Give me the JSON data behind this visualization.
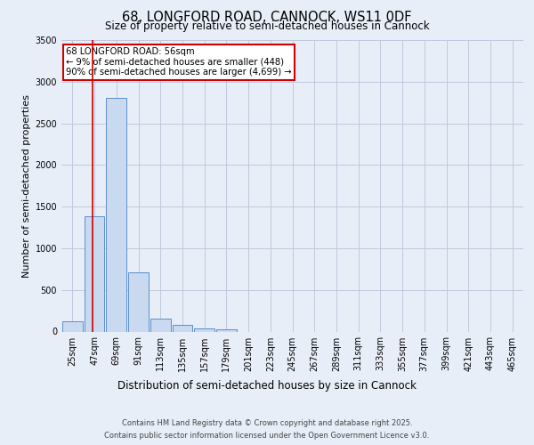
{
  "title1": "68, LONGFORD ROAD, CANNOCK, WS11 0DF",
  "title2": "Size of property relative to semi-detached houses in Cannock",
  "xlabel": "Distribution of semi-detached houses by size in Cannock",
  "ylabel": "Number of semi-detached properties",
  "annotation_title": "68 LONGFORD ROAD: 56sqm",
  "annotation_line1": "← 9% of semi-detached houses are smaller (448)",
  "annotation_line2": "90% of semi-detached houses are larger (4,699) →",
  "footer1": "Contains HM Land Registry data © Crown copyright and database right 2025.",
  "footer2": "Contains public sector information licensed under the Open Government Licence v3.0.",
  "bar_color": "#c8d9f0",
  "bar_edge_color": "#5b8fc9",
  "vline_x": 56,
  "vline_color": "#cc0000",
  "background_color": "#e8eef8",
  "categories": [
    "25sqm",
    "47sqm",
    "69sqm",
    "91sqm",
    "113sqm",
    "135sqm",
    "157sqm",
    "179sqm",
    "201sqm",
    "223sqm",
    "245sqm",
    "267sqm",
    "289sqm",
    "311sqm",
    "333sqm",
    "355sqm",
    "377sqm",
    "399sqm",
    "421sqm",
    "443sqm",
    "465sqm"
  ],
  "bin_edges": [
    25,
    47,
    69,
    91,
    113,
    135,
    157,
    179,
    201,
    223,
    245,
    267,
    289,
    311,
    333,
    355,
    377,
    399,
    421,
    443,
    465
  ],
  "values": [
    125,
    1380,
    2800,
    710,
    155,
    80,
    40,
    25,
    0,
    0,
    0,
    0,
    0,
    0,
    0,
    0,
    0,
    0,
    0,
    0,
    0
  ],
  "ylim": [
    0,
    3500
  ],
  "yticks": [
    0,
    500,
    1000,
    1500,
    2000,
    2500,
    3000,
    3500
  ],
  "annotation_box_color": "#ffffff",
  "annotation_box_edge": "#cc0000",
  "grid_color": "#c0c8dc",
  "title1_fontsize": 10.5,
  "title2_fontsize": 8.5,
  "ylabel_fontsize": 8,
  "xlabel_fontsize": 8.5,
  "tick_fontsize": 7,
  "footer_fontsize": 6
}
